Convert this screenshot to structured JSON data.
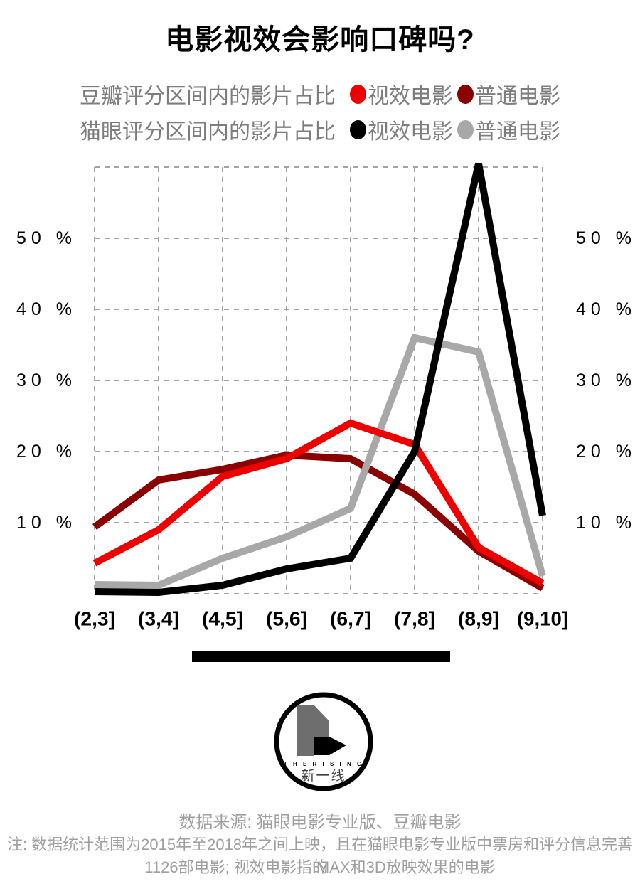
{
  "title": "电影视效会影响口碑吗?",
  "legend": {
    "rows": [
      {
        "label": "豆瓣评分区间内的影片占比",
        "series": [
          {
            "name": "视效电影",
            "color": "#ee0000"
          },
          {
            "name": "普通电影",
            "color": "#8b0000"
          }
        ]
      },
      {
        "label": "猫眼评分区间内的影片占比",
        "series": [
          {
            "name": "视效电影",
            "color": "#000000"
          },
          {
            "name": "普通电影",
            "color": "#a8a8a8"
          }
        ]
      }
    ]
  },
  "chart_data": {
    "type": "line",
    "categories": [
      "(2,3]",
      "(3,4]",
      "(4,5]",
      "(5,6]",
      "(6,7]",
      "(7,8]",
      "(8,9]",
      "(9,10]"
    ],
    "series": [
      {
        "name": "豆瓣评分-普通电影",
        "color": "#8b0000",
        "values": [
          9.4,
          16,
          17.5,
          19.5,
          19,
          14,
          6,
          0.8
        ]
      },
      {
        "name": "猫眼评分-普通电影",
        "color": "#a8a8a8",
        "values": [
          1.3,
          1.2,
          5,
          8,
          12,
          36,
          34,
          2.5
        ]
      },
      {
        "name": "豆瓣评分-视效电影",
        "color": "#ee0000",
        "values": [
          4.3,
          9,
          16.5,
          19,
          24,
          21,
          6.5,
          1.5
        ]
      },
      {
        "name": "猫眼评分-视效电影",
        "color": "#000000",
        "values": [
          0.3,
          0.2,
          1.2,
          3.5,
          5,
          20,
          60.5,
          11
        ]
      }
    ],
    "y_ticks": [
      "10 %",
      "20 %",
      "30 %",
      "40 %",
      "50 %"
    ],
    "y_tick_values": [
      10,
      20,
      30,
      40,
      50
    ],
    "ylim": [
      0,
      60
    ],
    "grid": "dashed",
    "grid_color": "#a3a3a3",
    "y_axis_sides": "both",
    "legend_position": "top"
  },
  "logo": {
    "text_en": "T H E  R I S I N G",
    "text_cn": "新一线"
  },
  "footer": {
    "source": "数据来源: 猫眼电影专业版、豆瓣电影",
    "note_line1": "注: 数据统计范围为2015年至2018年之间上映，且在猫眼电影专业版中票房和评分信息完善的",
    "note_line2": "1126部电影; 视效电影指IMAX和3D放映效果的电影"
  }
}
